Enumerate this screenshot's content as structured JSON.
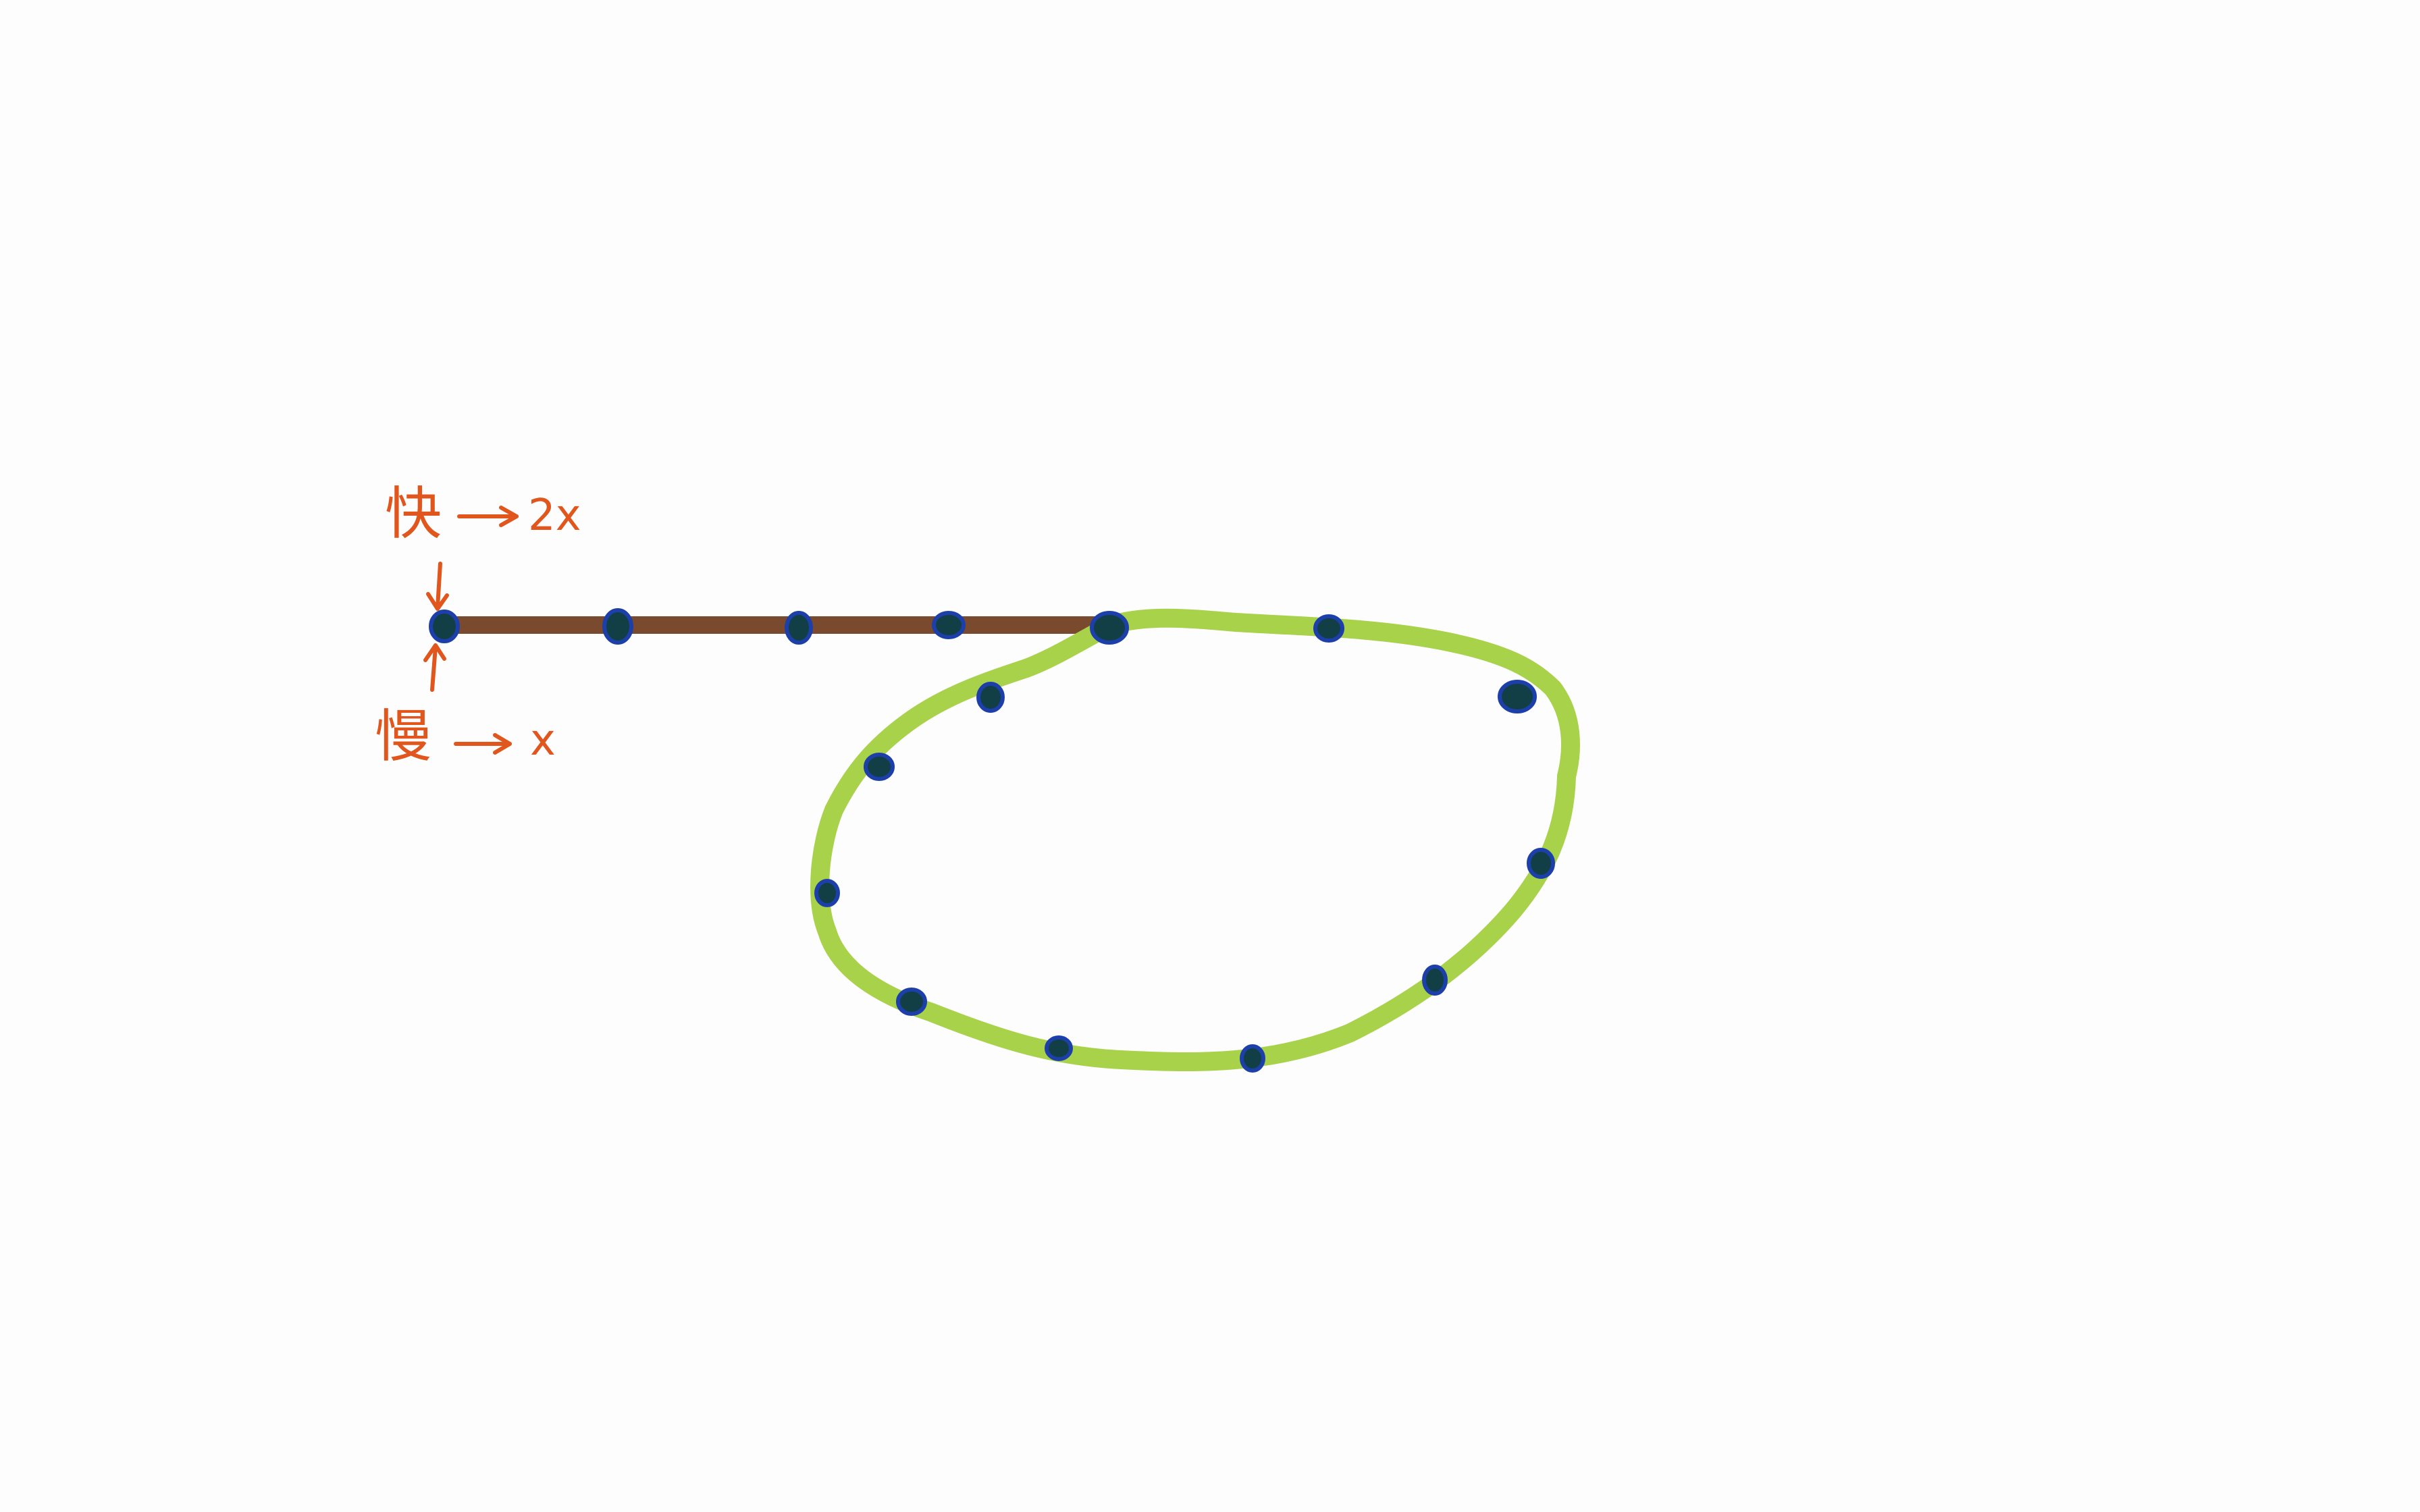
{
  "diagram": {
    "type": "hand-drawn sketch",
    "description_free": true,
    "labels": {
      "fast": {
        "char": "快",
        "arrow_text": "2x"
      },
      "slow": {
        "char": "慢",
        "arrow_text": "x"
      }
    },
    "colors": {
      "background": "#fdfdfd",
      "straight_path": "#7a4a2e",
      "loop_path": "#a9d24b",
      "dots_fill": "#123f45",
      "dots_outline": "#1d3faa",
      "annotation": "#e0561d"
    },
    "straight_segment_dot_count": 5,
    "loop_dot_count": 11
  }
}
